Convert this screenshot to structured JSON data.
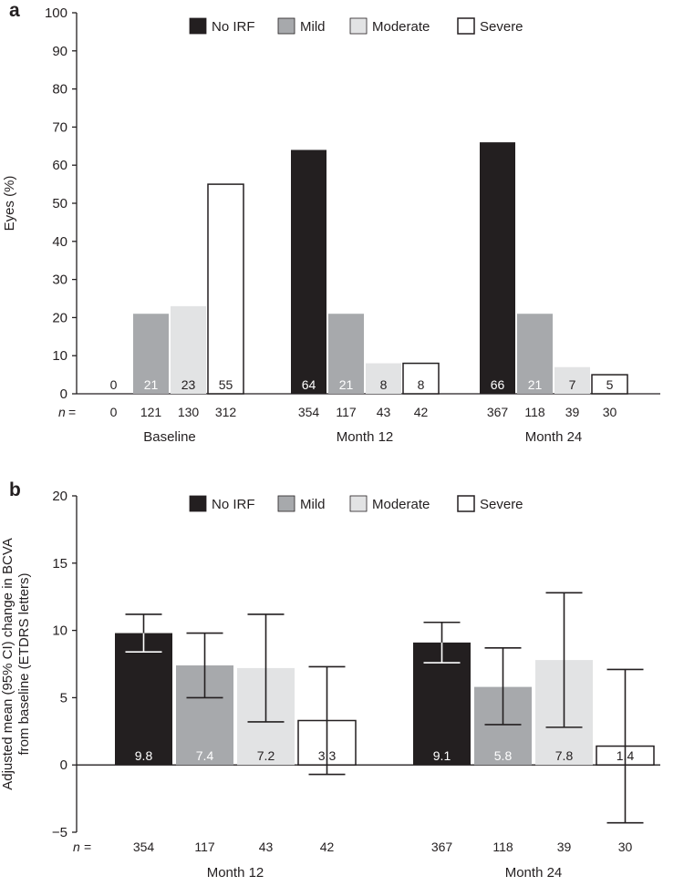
{
  "colors": {
    "No IRF": "#231f20",
    "Mild": "#a7a9ac",
    "Moderate": "#e2e3e4",
    "Severe": "#ffffff",
    "outline": "#231f20"
  },
  "n_prefix": "n =",
  "chart_data": [
    {
      "panel": "a",
      "type": "bar",
      "ylabel": "Eyes (%)",
      "ylim": [
        0,
        100
      ],
      "yticks": [
        0,
        10,
        20,
        30,
        40,
        50,
        60,
        70,
        80,
        90,
        100
      ],
      "legend": [
        "No IRF",
        "Mild",
        "Moderate",
        "Severe"
      ],
      "legend_position": "top",
      "categories": [
        "Baseline",
        "Month 12",
        "Month 24"
      ],
      "series": [
        {
          "name": "No IRF",
          "values": [
            0,
            64,
            66
          ],
          "labels": [
            "0",
            "64",
            "66"
          ],
          "n": [
            "0",
            "354",
            "367"
          ]
        },
        {
          "name": "Mild",
          "values": [
            21,
            21,
            21
          ],
          "labels": [
            "21",
            "21",
            "21"
          ],
          "n": [
            "121",
            "117",
            "118"
          ]
        },
        {
          "name": "Moderate",
          "values": [
            23,
            8,
            7
          ],
          "labels": [
            "23",
            "8",
            "7"
          ],
          "n": [
            "130",
            "43",
            "39"
          ]
        },
        {
          "name": "Severe",
          "values": [
            55,
            8,
            5
          ],
          "labels": [
            "55",
            "8",
            "5"
          ],
          "n": [
            "312",
            "42",
            "30"
          ]
        }
      ]
    },
    {
      "panel": "b",
      "type": "bar",
      "ylabel_lines": [
        "Adjusted mean (95% CI) change in BCVA",
        "from baseline (ETDRS letters)"
      ],
      "ylim": [
        -5,
        20
      ],
      "yticks": [
        -5,
        0,
        5,
        10,
        15,
        20
      ],
      "ytick_labels": [
        "−5",
        "0",
        "5",
        "10",
        "15",
        "20"
      ],
      "legend": [
        "No IRF",
        "Mild",
        "Moderate",
        "Severe"
      ],
      "legend_position": "top",
      "categories": [
        "Month 12",
        "Month 24"
      ],
      "series": [
        {
          "name": "No IRF",
          "values": [
            9.8,
            9.1
          ],
          "labels": [
            "9.8",
            "9.1"
          ],
          "ci_low": [
            8.4,
            7.6
          ],
          "ci_high": [
            11.2,
            10.6
          ],
          "n": [
            "354",
            "367"
          ]
        },
        {
          "name": "Mild",
          "values": [
            7.4,
            5.8
          ],
          "labels": [
            "7.4",
            "5.8"
          ],
          "ci_low": [
            5.0,
            3.0
          ],
          "ci_high": [
            9.8,
            8.7
          ],
          "n": [
            "117",
            "118"
          ]
        },
        {
          "name": "Moderate",
          "values": [
            7.2,
            7.8
          ],
          "labels": [
            "7.2",
            "7.8"
          ],
          "ci_low": [
            3.2,
            2.8
          ],
          "ci_high": [
            11.2,
            12.8
          ],
          "n": [
            "43",
            "39"
          ]
        },
        {
          "name": "Severe",
          "values": [
            3.3,
            1.4
          ],
          "labels": [
            "3.3",
            "1.4"
          ],
          "ci_low": [
            -0.7,
            -4.3
          ],
          "ci_high": [
            7.3,
            7.1
          ],
          "n": [
            "42",
            "30"
          ]
        }
      ]
    }
  ]
}
